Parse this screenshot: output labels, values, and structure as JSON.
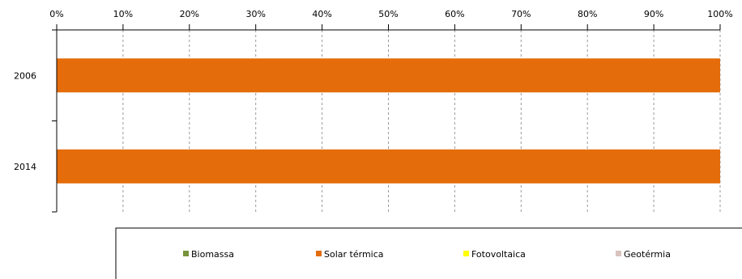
{
  "chart_data": {
    "type": "bar",
    "orientation": "horizontal",
    "stacked": true,
    "percent_stacked": true,
    "categories": [
      "2006",
      "2014"
    ],
    "series": [
      {
        "name": "Biomassa",
        "color": "#77933c",
        "values": [
          0,
          0
        ]
      },
      {
        "name": "Solar térmica",
        "color": "#e46c0a",
        "values": [
          100,
          100
        ]
      },
      {
        "name": "Fotovoltaica",
        "color": "#ffff00",
        "values": [
          0,
          0
        ]
      },
      {
        "name": "Geotérmia",
        "color": "#d9c3bf",
        "values": [
          0,
          0
        ]
      }
    ],
    "xlim": [
      0,
      100
    ],
    "x_ticks": [
      "0%",
      "10%",
      "20%",
      "30%",
      "40%",
      "50%",
      "60%",
      "70%",
      "80%",
      "90%",
      "100%"
    ],
    "x_axis_position": "top",
    "grid": "vertical dashed",
    "legend_position": "bottom"
  }
}
